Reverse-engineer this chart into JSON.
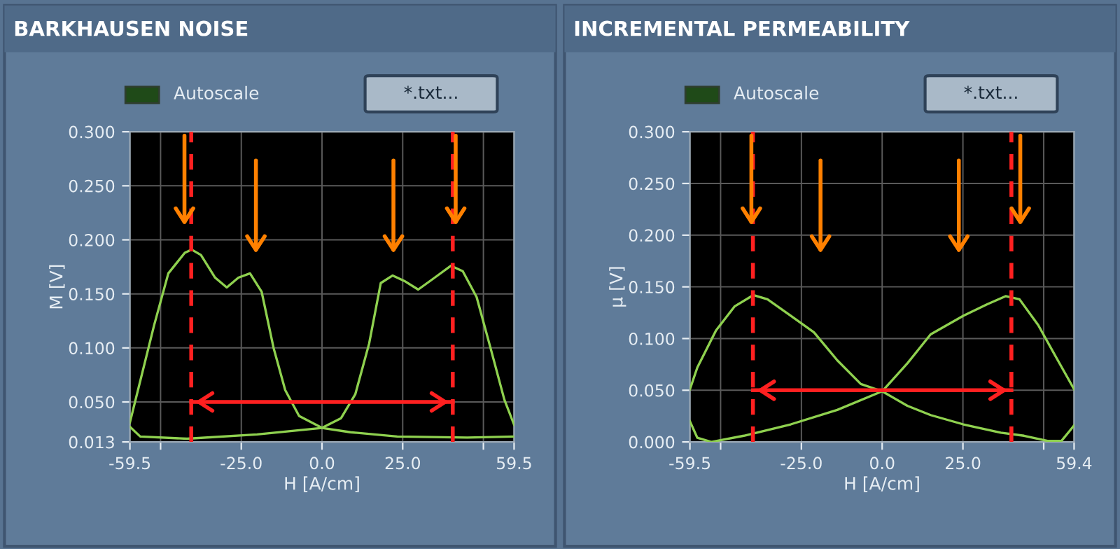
{
  "chart_data": [
    {
      "type": "line",
      "title": "BARKHAUSEN NOISE",
      "xlabel": "H [A/cm]",
      "ylabel": "M [V]",
      "annotations": [
        "Autoscale",
        "*.txt..."
      ],
      "xlim": [
        -59.5,
        59.5
      ],
      "ylim": [
        0.013,
        0.3
      ],
      "xticks": [
        {
          "value": -59.5,
          "label": "-59.5"
        },
        {
          "value": -50,
          "label": null
        },
        {
          "value": -25,
          "label": "-25.0"
        },
        {
          "value": 0,
          "label": "0.0"
        },
        {
          "value": 25,
          "label": "25.0"
        },
        {
          "value": 50,
          "label": null
        },
        {
          "value": 59.5,
          "label": "59.5"
        }
      ],
      "yticks": [
        {
          "value": 0.013,
          "label": "0.013"
        },
        {
          "value": 0.05,
          "label": "0.050"
        },
        {
          "value": 0.1,
          "label": "0.100"
        },
        {
          "value": 0.15,
          "label": "0.150"
        },
        {
          "value": 0.2,
          "label": "0.200"
        },
        {
          "value": 0.25,
          "label": "0.250"
        },
        {
          "value": 0.3,
          "label": "0.300"
        }
      ],
      "grid": true,
      "ref_lines": [
        {
          "axis": "x",
          "value": -40.5,
          "color": "#ff2020",
          "line_style": "dashed"
        },
        {
          "axis": "x",
          "value": 40.5,
          "color": "#ff2020",
          "line_style": "dashed"
        }
      ],
      "series": [
        {
          "color": "#8fd14f",
          "x": [
            -59.5,
            -52,
            -47.6,
            -42.5,
            -40.4,
            -37.5,
            -33.1,
            -29.5,
            -25.9,
            -22.3,
            -18.7,
            -15,
            -11.4,
            -7.1,
            0,
            8.8,
            23.3,
            45,
            59.5
          ],
          "values": [
            0.031,
            0.121,
            0.169,
            0.188,
            0.191,
            0.186,
            0.165,
            0.156,
            0.165,
            0.169,
            0.152,
            0.1,
            0.061,
            0.037,
            0.026,
            0.022,
            0.018,
            0.017,
            0.018
          ]
        },
        {
          "color": "#8fd14f",
          "x": [
            -59.5,
            -56.3,
            -41.8,
            -20.1,
            0,
            5.9,
            10.3,
            14.6,
            18.2,
            21.9,
            25.5,
            29.8,
            34.9,
            39.9,
            43.6,
            47.9,
            52.2,
            56.5,
            59.5
          ],
          "values": [
            0.027,
            0.018,
            0.016,
            0.02,
            0.026,
            0.035,
            0.057,
            0.104,
            0.16,
            0.167,
            0.162,
            0.154,
            0.165,
            0.176,
            0.171,
            0.147,
            0.1,
            0.052,
            0.029
          ]
        },
        {
          "type": "line",
          "color": "#ff2020",
          "x": [
            -40.5,
            40.5
          ],
          "values": [
            0.05,
            0.05
          ]
        }
      ]
    },
    {
      "type": "line",
      "title": "INCREMENTAL PERMEABILITY",
      "xlabel": "H [A/cm]",
      "ylabel": "μ [V]",
      "annotations": [
        "Autoscale",
        "*.txt..."
      ],
      "xlim": [
        -59.5,
        59.4
      ],
      "ylim": [
        0,
        0.3
      ],
      "xticks": [
        {
          "value": -59.5,
          "label": "-59.5"
        },
        {
          "value": -50,
          "label": null
        },
        {
          "value": -25,
          "label": "-25.0"
        },
        {
          "value": 0,
          "label": "0.0"
        },
        {
          "value": 25,
          "label": "25.0"
        },
        {
          "value": 50,
          "label": null
        },
        {
          "value": 59.4,
          "label": "59.4"
        }
      ],
      "yticks": [
        {
          "value": 0,
          "label": "0.000"
        },
        {
          "value": 0.05,
          "label": "0.050"
        },
        {
          "value": 0.1,
          "label": "0.100"
        },
        {
          "value": 0.15,
          "label": "0.150"
        },
        {
          "value": 0.2,
          "label": "0.200"
        },
        {
          "value": 0.25,
          "label": "0.250"
        },
        {
          "value": 0.3,
          "label": "0.300"
        }
      ],
      "grid": true,
      "ref_lines": [
        {
          "axis": "x",
          "value": -40,
          "color": "#ff2020",
          "line_style": "dashed"
        },
        {
          "axis": "x",
          "value": 40,
          "color": "#ff2020",
          "line_style": "dashed"
        }
      ],
      "series": [
        {
          "color": "#8fd14f",
          "x": [
            -59.5,
            -57.2,
            -51.4,
            -45.7,
            -39.9,
            -35.5,
            -28.3,
            -21.1,
            -13.9,
            -6.6,
            0,
            7.8,
            15,
            25.1,
            36.7,
            43.9,
            51.2,
            55.5,
            59.4
          ],
          "values": [
            0.051,
            0.072,
            0.108,
            0.131,
            0.142,
            0.138,
            0.122,
            0.106,
            0.079,
            0.056,
            0.049,
            0.035,
            0.026,
            0.017,
            0.009,
            0.006,
            0.001,
            0.001,
            0.016
          ]
        },
        {
          "color": "#8fd14f",
          "x": [
            -59.5,
            -57.2,
            -52.9,
            -42.8,
            -28.3,
            -13.9,
            0,
            7.8,
            15,
            25.1,
            32.4,
            38.2,
            42.5,
            48.3,
            54,
            59.4
          ],
          "values": [
            0.02,
            0.004,
            0,
            0.006,
            0.017,
            0.031,
            0.049,
            0.076,
            0.104,
            0.122,
            0.133,
            0.141,
            0.138,
            0.113,
            0.081,
            0.051
          ]
        },
        {
          "type": "line",
          "color": "#ff2020",
          "x": [
            -40,
            40
          ],
          "values": [
            0.05,
            0.05
          ]
        }
      ]
    }
  ]
}
